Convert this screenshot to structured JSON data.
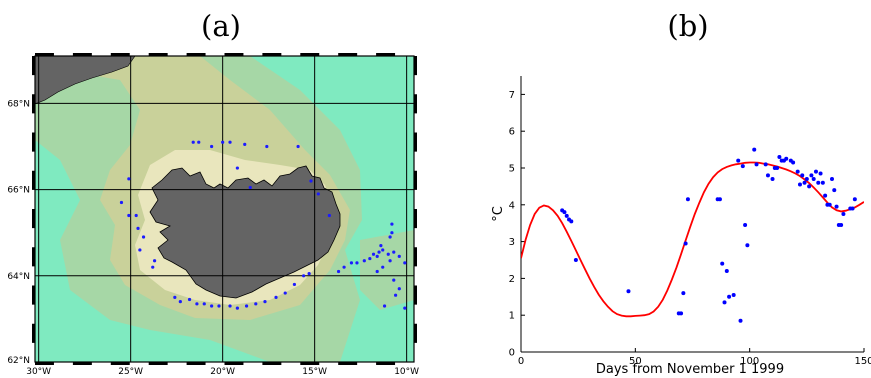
{
  "panel_labels": {
    "a": "(a)",
    "b": "(b)"
  },
  "map": {
    "lat_labels": [
      "68°N",
      "66°N",
      "64°N",
      "62°N"
    ],
    "lat_values": [
      68,
      66,
      64,
      62
    ],
    "lon_labels": [
      "30°W",
      "25°W",
      "20°W",
      "15°W",
      "10°W"
    ],
    "lon_values": [
      -30,
      -25,
      -20,
      -15,
      -10
    ],
    "lon_range": [
      -30.2,
      -9.6
    ],
    "lat_range": [
      62.0,
      69.1
    ],
    "colors": {
      "land": "#646464",
      "deep_water": "#7feac0",
      "mid_water": "#a6d7a6",
      "shelf_water": "#c9d19a",
      "shallow_water": "#e9e6bd",
      "frame": "#000000",
      "station": "#1c1cff"
    },
    "stations": [
      [
        -21.6,
        67.1
      ],
      [
        -21.3,
        67.1
      ],
      [
        -20.6,
        67.0
      ],
      [
        -20.0,
        67.1
      ],
      [
        -19.6,
        67.1
      ],
      [
        -18.8,
        67.05
      ],
      [
        -17.6,
        67.0
      ],
      [
        -15.9,
        67.0
      ],
      [
        -25.1,
        66.25
      ],
      [
        -25.5,
        65.7
      ],
      [
        -25.1,
        65.4
      ],
      [
        -24.7,
        65.4
      ],
      [
        -24.6,
        65.1
      ],
      [
        -24.3,
        64.9
      ],
      [
        -24.5,
        64.6
      ],
      [
        -23.7,
        64.35
      ],
      [
        -23.8,
        64.2
      ],
      [
        -18.5,
        66.05
      ],
      [
        -15.2,
        66.2
      ],
      [
        -14.8,
        65.9
      ],
      [
        -19.2,
        66.5
      ],
      [
        -22.6,
        63.5
      ],
      [
        -22.3,
        63.4
      ],
      [
        -21.8,
        63.45
      ],
      [
        -21.4,
        63.35
      ],
      [
        -21.0,
        63.35
      ],
      [
        -20.6,
        63.3
      ],
      [
        -20.2,
        63.3
      ],
      [
        -19.6,
        63.3
      ],
      [
        -19.2,
        63.25
      ],
      [
        -18.7,
        63.3
      ],
      [
        -18.2,
        63.35
      ],
      [
        -17.7,
        63.4
      ],
      [
        -17.1,
        63.5
      ],
      [
        -16.6,
        63.6
      ],
      [
        -16.1,
        63.8
      ],
      [
        -15.6,
        64.0
      ],
      [
        -15.3,
        64.05
      ],
      [
        -13.7,
        64.1
      ],
      [
        -13.4,
        64.2
      ],
      [
        -13.0,
        64.3
      ],
      [
        -12.7,
        64.3
      ],
      [
        -12.3,
        64.35
      ],
      [
        -12.0,
        64.4
      ],
      [
        -11.8,
        64.5
      ],
      [
        -11.6,
        64.45
      ],
      [
        -11.5,
        64.55
      ],
      [
        -11.3,
        64.6
      ],
      [
        -11.0,
        64.5
      ],
      [
        -10.9,
        64.35
      ],
      [
        -10.7,
        64.55
      ],
      [
        -10.4,
        64.45
      ],
      [
        -10.1,
        64.3
      ],
      [
        -11.3,
        64.2
      ],
      [
        -11.4,
        64.7
      ],
      [
        -10.9,
        64.9
      ],
      [
        -10.8,
        65.2
      ],
      [
        -10.8,
        65.0
      ],
      [
        -11.6,
        64.1
      ],
      [
        -10.7,
        63.9
      ],
      [
        -10.4,
        63.7
      ],
      [
        -10.6,
        63.55
      ],
      [
        -11.2,
        63.3
      ],
      [
        -10.1,
        63.25
      ],
      [
        -14.2,
        65.4
      ]
    ]
  },
  "chart_data": {
    "type": "scatter",
    "title": "",
    "xlabel": "Days from November 1 1999",
    "ylabel": "°C",
    "xlim": [
      0,
      150
    ],
    "ylim": [
      0,
      7.5
    ],
    "xticks": [
      "0",
      "50",
      "100",
      "150"
    ],
    "xtick_values": [
      0,
      50,
      100,
      150
    ],
    "yticks": [
      "0",
      "1",
      "2",
      "3",
      "4",
      "5",
      "6",
      "7"
    ],
    "ytick_values": [
      0,
      1,
      2,
      3,
      4,
      5,
      6,
      7
    ],
    "grid": false,
    "series": [
      {
        "kind": "scatter",
        "color": "#0000ff",
        "points": [
          [
            18,
            3.85
          ],
          [
            19,
            3.8
          ],
          [
            20,
            3.7
          ],
          [
            21,
            3.6
          ],
          [
            22,
            3.55
          ],
          [
            24,
            2.5
          ],
          [
            47,
            1.65
          ],
          [
            69,
            1.05
          ],
          [
            70,
            1.05
          ],
          [
            71,
            1.6
          ],
          [
            72,
            2.95
          ],
          [
            73,
            4.15
          ],
          [
            86,
            4.15
          ],
          [
            87,
            4.15
          ],
          [
            88,
            2.4
          ],
          [
            89,
            1.35
          ],
          [
            90,
            2.2
          ],
          [
            91,
            1.5
          ],
          [
            93,
            1.55
          ],
          [
            95,
            5.2
          ],
          [
            96,
            0.85
          ],
          [
            97,
            5.05
          ],
          [
            98,
            3.45
          ],
          [
            99,
            2.9
          ],
          [
            102,
            5.5
          ],
          [
            103,
            5.1
          ],
          [
            107,
            5.1
          ],
          [
            108,
            4.8
          ],
          [
            110,
            4.7
          ],
          [
            111,
            5.0
          ],
          [
            112,
            5.0
          ],
          [
            113,
            5.3
          ],
          [
            114,
            5.2
          ],
          [
            115,
            5.2
          ],
          [
            116,
            5.25
          ],
          [
            118,
            5.2
          ],
          [
            119,
            5.15
          ],
          [
            121,
            4.9
          ],
          [
            122,
            4.55
          ],
          [
            123,
            4.8
          ],
          [
            124,
            4.6
          ],
          [
            125,
            4.7
          ],
          [
            126,
            4.5
          ],
          [
            127,
            4.8
          ],
          [
            128,
            4.7
          ],
          [
            129,
            4.9
          ],
          [
            130,
            4.6
          ],
          [
            131,
            4.85
          ],
          [
            132,
            4.6
          ],
          [
            133,
            4.25
          ],
          [
            134,
            4.0
          ],
          [
            135,
            4.0
          ],
          [
            136,
            4.7
          ],
          [
            137,
            4.4
          ],
          [
            138,
            3.95
          ],
          [
            139,
            3.45
          ],
          [
            140,
            3.45
          ],
          [
            141,
            3.75
          ],
          [
            144,
            3.9
          ],
          [
            145,
            3.9
          ],
          [
            146,
            4.15
          ]
        ]
      },
      {
        "kind": "line",
        "color": "#ff0000",
        "x": [
          0,
          2,
          4,
          6,
          8,
          10,
          12,
          14,
          16,
          18,
          20,
          22,
          24,
          26,
          28,
          30,
          32,
          34,
          36,
          38,
          40,
          42,
          44,
          46,
          48,
          50,
          52,
          54,
          56,
          58,
          60,
          62,
          64,
          66,
          68,
          70,
          72,
          74,
          76,
          78,
          80,
          82,
          84,
          86,
          88,
          90,
          92,
          94,
          96,
          98,
          100,
          102,
          104,
          106,
          108,
          110,
          112,
          114,
          116,
          118,
          120,
          122,
          124,
          126,
          128,
          130,
          132,
          134,
          136,
          138,
          140,
          142,
          144,
          146,
          148,
          150
        ],
        "y": [
          2.55,
          3.05,
          3.45,
          3.75,
          3.92,
          3.98,
          3.95,
          3.85,
          3.7,
          3.5,
          3.27,
          3.02,
          2.76,
          2.5,
          2.25,
          2.0,
          1.77,
          1.56,
          1.38,
          1.23,
          1.11,
          1.03,
          0.99,
          0.97,
          0.97,
          0.98,
          0.99,
          1.0,
          1.03,
          1.1,
          1.23,
          1.42,
          1.67,
          1.97,
          2.3,
          2.66,
          3.03,
          3.4,
          3.75,
          4.06,
          4.34,
          4.57,
          4.75,
          4.88,
          4.97,
          5.03,
          5.07,
          5.1,
          5.12,
          5.14,
          5.15,
          5.15,
          5.14,
          5.12,
          5.1,
          5.07,
          5.04,
          5.0,
          4.96,
          4.91,
          4.85,
          4.78,
          4.69,
          4.59,
          4.47,
          4.34,
          4.2,
          4.06,
          3.93,
          3.85,
          3.82,
          3.84,
          3.88,
          3.93,
          4.0,
          4.08
        ]
      }
    ]
  }
}
